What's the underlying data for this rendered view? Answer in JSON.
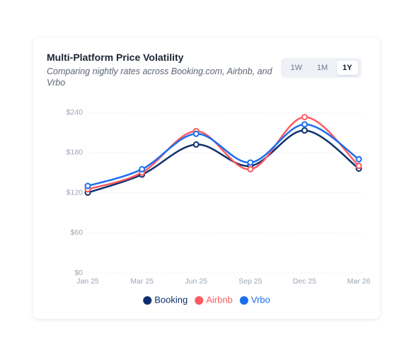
{
  "chart_data": {
    "type": "line",
    "title": "Multi-Platform Price Volatility",
    "subtitle": "Comparing nightly rates across Booking.com, Airbnb, and Vrbo",
    "range_buttons": [
      {
        "label": "1W"
      },
      {
        "label": "1M"
      },
      {
        "label": "1Y",
        "active": true
      }
    ],
    "categories": [
      "Jan 25",
      "Mar 25",
      "Jun 25",
      "Sep 25",
      "Dec 25",
      "Mar 26"
    ],
    "series": [
      {
        "name": "Booking",
        "color": "#0d2f6e",
        "values": [
          120,
          147,
          192,
          160,
          213,
          156
        ]
      },
      {
        "name": "Airbnb",
        "color": "#ff5a5f",
        "values": [
          125,
          150,
          212,
          155,
          233,
          160
        ]
      },
      {
        "name": "Vrbo",
        "color": "#1a6ef0",
        "values": [
          130,
          155,
          208,
          165,
          222,
          170
        ]
      }
    ],
    "ylim": [
      0,
      240
    ],
    "yticks": [
      {
        "value": 0,
        "label": "$0"
      },
      {
        "value": 60,
        "label": "$60"
      },
      {
        "value": 120,
        "label": "$120"
      },
      {
        "value": 180,
        "label": "$180"
      },
      {
        "value": 240,
        "label": "$240"
      }
    ],
    "grid": true,
    "legend": "bottom"
  }
}
